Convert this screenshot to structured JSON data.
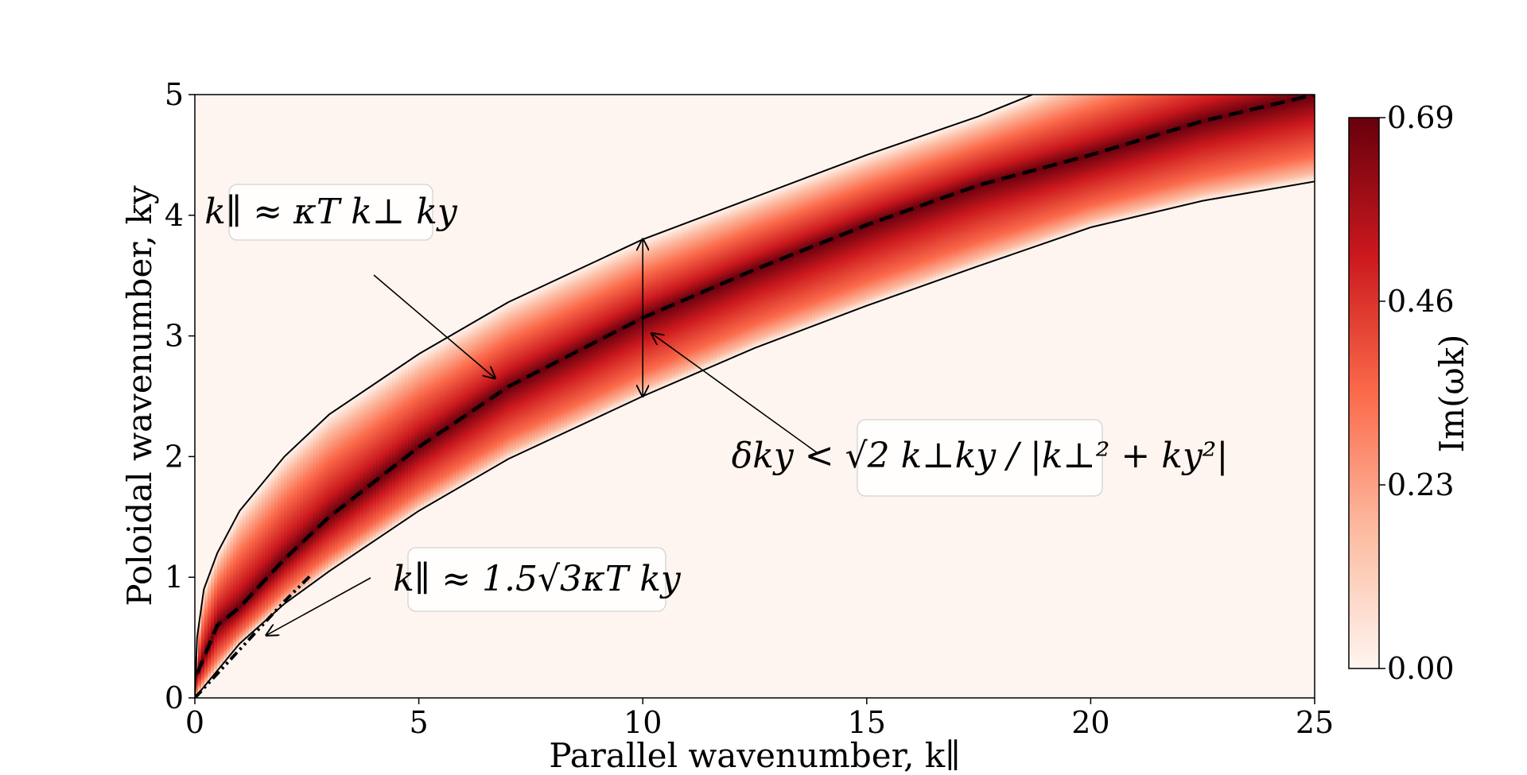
{
  "chart_data": {
    "type": "heatmap",
    "xlabel": "Parallel wavenumber, k∥",
    "ylabel": "Poloidal wavenumber, ky",
    "xlim": [
      0,
      25
    ],
    "ylim": [
      0,
      5
    ],
    "xticks": [
      "0",
      "5",
      "10",
      "15",
      "20",
      "25"
    ],
    "yticks": [
      "0",
      "1",
      "2",
      "3",
      "4",
      "5"
    ],
    "grid": false,
    "colorbar": {
      "label": "Im(ωk)",
      "min": 0.0,
      "max": 0.69,
      "ticks": [
        "0.00",
        "0.23",
        "0.46",
        "0.69"
      ],
      "colormap": "Reds",
      "colors": [
        "#fff5f0",
        "#fcbba1",
        "#fb6a4a",
        "#cb181d",
        "#67000d"
      ]
    },
    "curves": [
      {
        "style": "dashed",
        "description_label": "k∥ ≈ κT k⊥ ky",
        "x": [
          0.05,
          0.5,
          1,
          2,
          3,
          5,
          7,
          10,
          12.5,
          15,
          17.5,
          20,
          22.5,
          25
        ],
        "y": [
          0.2,
          0.6,
          0.75,
          1.15,
          1.5,
          2.08,
          2.58,
          3.15,
          3.55,
          3.92,
          4.25,
          4.5,
          4.78,
          5.0
        ]
      },
      {
        "style": "solid",
        "role": "upper boundary",
        "x": [
          0.0,
          0.05,
          0.2,
          0.5,
          1,
          2,
          3,
          5,
          7,
          10,
          12.5,
          15,
          17.5,
          18.7
        ],
        "y": [
          0.0,
          0.5,
          0.9,
          1.2,
          1.55,
          2.0,
          2.35,
          2.85,
          3.28,
          3.8,
          4.15,
          4.5,
          4.82,
          5.0
        ]
      },
      {
        "style": "solid",
        "role": "lower boundary",
        "x": [
          0.0,
          1,
          2,
          3,
          5,
          7,
          10,
          12.5,
          15,
          17.5,
          20,
          22.5,
          25
        ],
        "y": [
          0.0,
          0.45,
          0.78,
          1.05,
          1.55,
          1.98,
          2.5,
          2.9,
          3.25,
          3.58,
          3.9,
          4.12,
          4.28
        ]
      },
      {
        "style": "dash-dot-dot",
        "description_label": "k∥ ≈ 1.5√3 κT ky",
        "x": [
          0.0,
          0.5,
          1.0,
          1.5,
          2.0,
          2.6
        ],
        "y": [
          0.0,
          0.2,
          0.4,
          0.6,
          0.8,
          1.02
        ]
      }
    ],
    "annotations": [
      {
        "text": "k∥ ≈ κT k⊥ ky",
        "arrow_to": [
          6.7,
          2.65
        ]
      },
      {
        "text": "δky < √2 k⊥ky / |k⊥² + ky²|",
        "arrow_to": [
          10.2,
          3.02
        ]
      },
      {
        "text": "k∥ ≈ 1.5√3κT ky",
        "arrow_to": [
          1.6,
          0.52
        ]
      }
    ],
    "double_arrow": {
      "x": 10,
      "y_from": 2.5,
      "y_to": 3.8
    }
  }
}
